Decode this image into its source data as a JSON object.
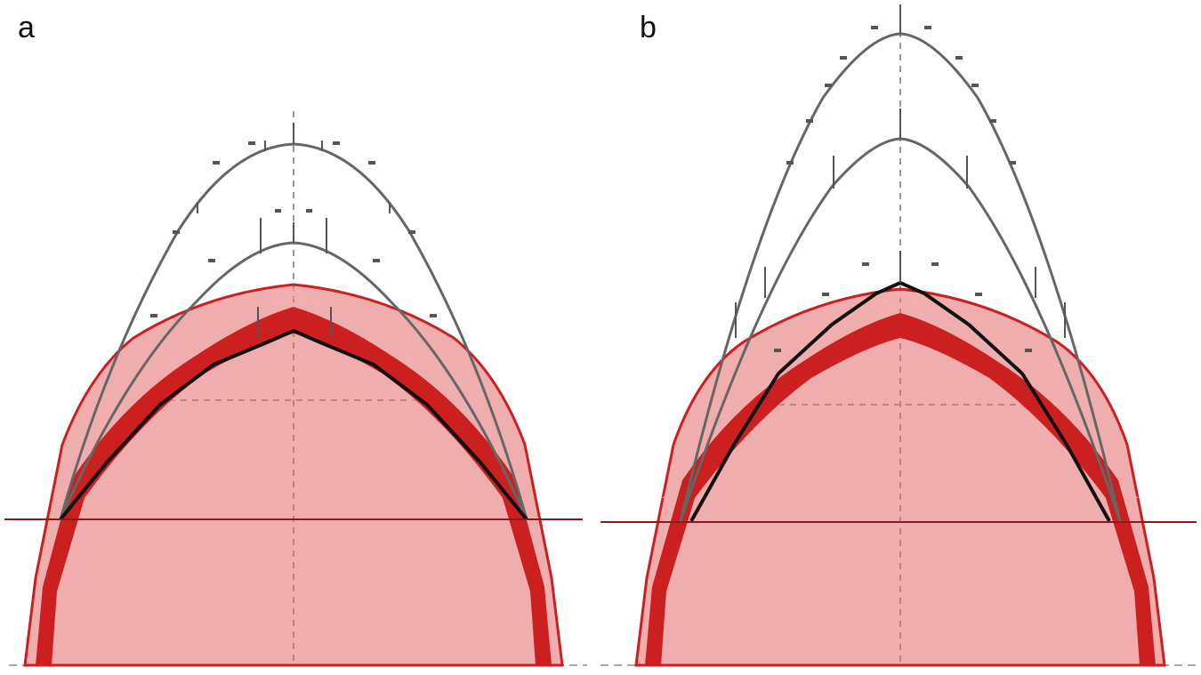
{
  "panels": [
    {
      "id": "a",
      "label": "a"
    },
    {
      "id": "b",
      "label": "b"
    }
  ],
  "colors": {
    "arch_fill": "#cc1f1f",
    "arch_mesh": "#e05050",
    "gray_curve": "#606060",
    "thrust_line": "#111111",
    "springing_line": "#8b1a1a",
    "guide": "#999999"
  }
}
